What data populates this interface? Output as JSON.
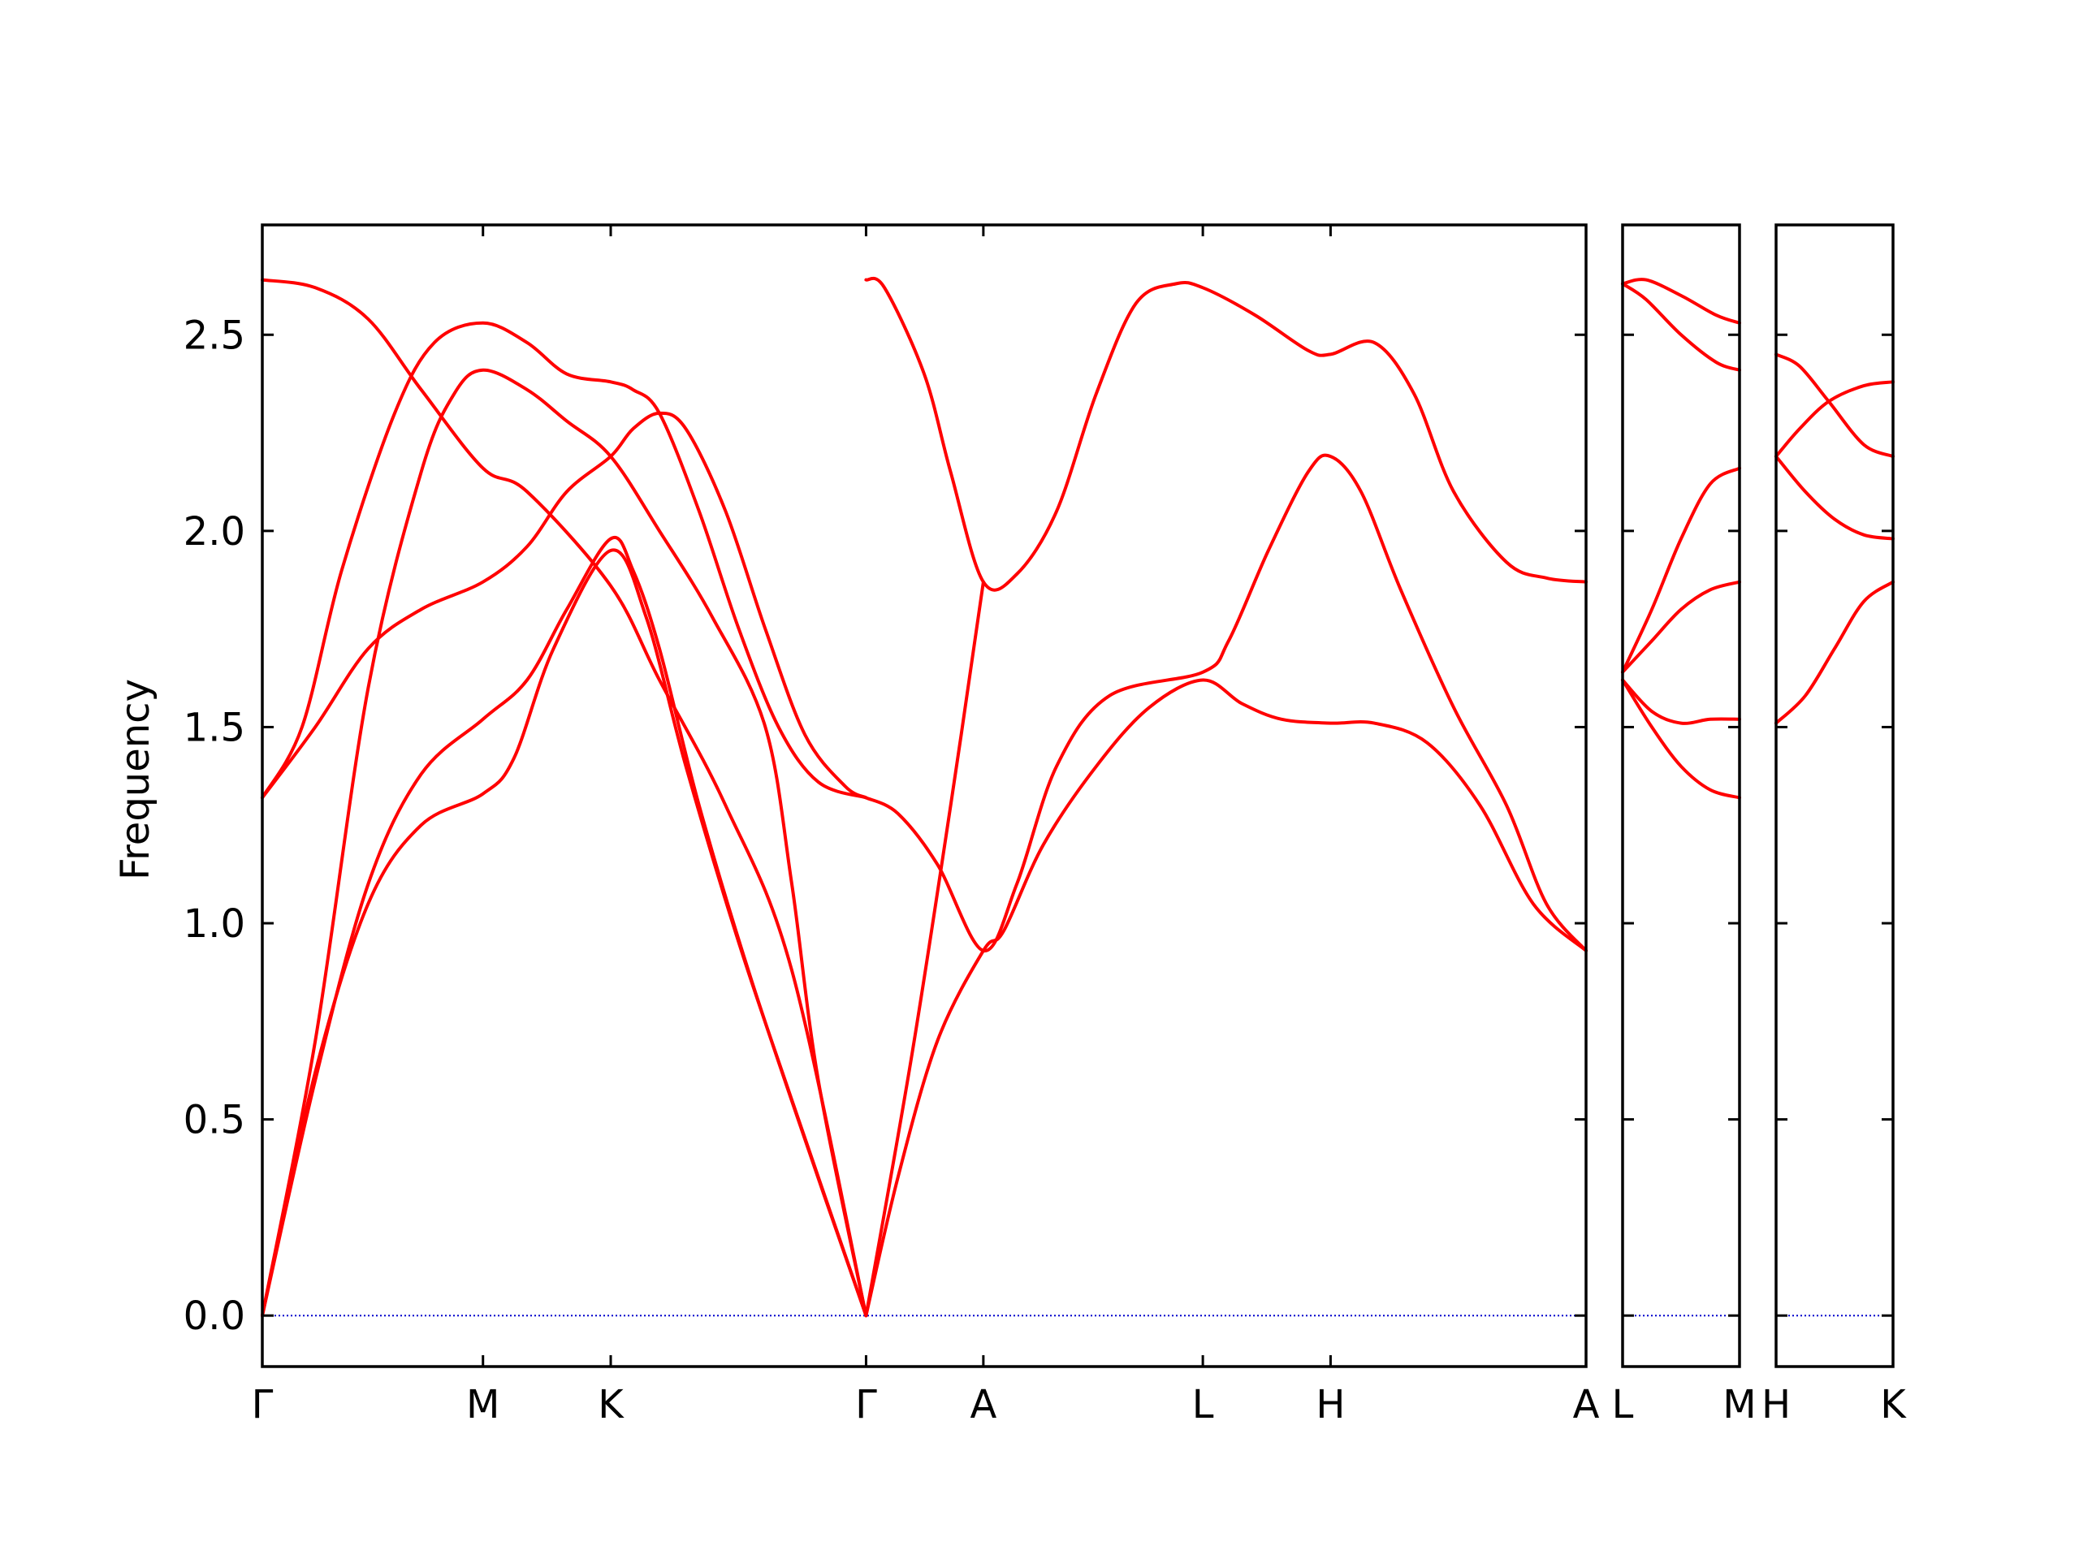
{
  "chart_data": {
    "type": "line",
    "title": "",
    "ylabel": "Frequency",
    "xlabel": "",
    "ylim": [
      -0.13,
      2.78
    ],
    "yticks": [
      "0.0",
      "0.5",
      "1.0",
      "1.5",
      "2.0",
      "2.5"
    ],
    "ytick_values": [
      0.0,
      0.5,
      1.0,
      1.5,
      2.0,
      2.5
    ],
    "band_color": "#ff0000",
    "zero_line_color": "#0000cc",
    "grid": false,
    "panels": [
      {
        "tick_labels": [
          "Γ",
          "M",
          "K",
          "Γ",
          "A",
          "L",
          "H",
          "A"
        ],
        "tick_positions": [
          0,
          0.1667,
          0.2632,
          0.4561,
          0.5447,
          0.7105,
          0.807,
          1.0
        ],
        "series": [
          {
            "points": [
              [
                0,
                2.64
              ],
              [
                0.04,
                2.62
              ],
              [
                0.08,
                2.54
              ],
              [
                0.12,
                2.36
              ],
              [
                0.1667,
                2.16
              ],
              [
                0.2,
                2.1
              ],
              [
                0.2632,
                1.86
              ],
              [
                0.3,
                1.62
              ],
              [
                0.35,
                1.3
              ],
              [
                0.4,
                0.88
              ],
              [
                0.4561,
                0.0
              ]
            ]
          },
          {
            "points": [
              [
                0,
                1.32
              ],
              [
                0.03,
                1.5
              ],
              [
                0.06,
                1.9
              ],
              [
                0.1,
                2.3
              ],
              [
                0.13,
                2.48
              ],
              [
                0.1667,
                2.53
              ],
              [
                0.2,
                2.48
              ],
              [
                0.23,
                2.4
              ],
              [
                0.2632,
                2.38
              ],
              [
                0.28,
                2.36
              ],
              [
                0.3,
                2.3
              ],
              [
                0.33,
                2.05
              ],
              [
                0.36,
                1.75
              ],
              [
                0.39,
                1.5
              ],
              [
                0.42,
                1.36
              ],
              [
                0.4561,
                1.32
              ]
            ]
          },
          {
            "points": [
              [
                0,
                1.32
              ],
              [
                0.04,
                1.5
              ],
              [
                0.08,
                1.7
              ],
              [
                0.12,
                1.8
              ],
              [
                0.1667,
                1.87
              ],
              [
                0.2,
                1.96
              ],
              [
                0.23,
                2.1
              ],
              [
                0.2632,
                2.19
              ],
              [
                0.28,
                2.26
              ],
              [
                0.3,
                2.3
              ],
              [
                0.32,
                2.26
              ],
              [
                0.35,
                2.05
              ],
              [
                0.38,
                1.75
              ],
              [
                0.41,
                1.48
              ],
              [
                0.44,
                1.35
              ],
              [
                0.4561,
                1.32
              ]
            ]
          },
          {
            "points": [
              [
                0,
                0.0
              ],
              [
                0.04,
                0.7
              ],
              [
                0.08,
                1.6
              ],
              [
                0.12,
                2.15
              ],
              [
                0.145,
                2.35
              ],
              [
                0.1667,
                2.41
              ],
              [
                0.2,
                2.36
              ],
              [
                0.23,
                2.28
              ],
              [
                0.2632,
                2.19
              ],
              [
                0.3,
                2.0
              ],
              [
                0.34,
                1.78
              ],
              [
                0.38,
                1.5
              ],
              [
                0.4,
                1.1
              ],
              [
                0.42,
                0.6
              ],
              [
                0.4561,
                0.0
              ]
            ]
          },
          {
            "points": [
              [
                0,
                0.0
              ],
              [
                0.04,
                0.6
              ],
              [
                0.08,
                1.1
              ],
              [
                0.12,
                1.38
              ],
              [
                0.1667,
                1.52
              ],
              [
                0.2,
                1.62
              ],
              [
                0.23,
                1.8
              ],
              [
                0.2632,
                1.98
              ],
              [
                0.28,
                1.9
              ],
              [
                0.3,
                1.7
              ],
              [
                0.33,
                1.3
              ],
              [
                0.37,
                0.85
              ],
              [
                0.42,
                0.35
              ],
              [
                0.4561,
                0.0
              ]
            ]
          },
          {
            "points": [
              [
                0,
                0.0
              ],
              [
                0.04,
                0.62
              ],
              [
                0.08,
                1.05
              ],
              [
                0.12,
                1.25
              ],
              [
                0.1667,
                1.33
              ],
              [
                0.19,
                1.42
              ],
              [
                0.22,
                1.7
              ],
              [
                0.2632,
                1.95
              ],
              [
                0.29,
                1.78
              ],
              [
                0.32,
                1.4
              ],
              [
                0.36,
                0.95
              ],
              [
                0.4,
                0.55
              ],
              [
                0.4561,
                0.0
              ]
            ]
          },
          {
            "points": [
              [
                0.4561,
                2.64
              ],
              [
                0.47,
                2.62
              ],
              [
                0.5,
                2.4
              ],
              [
                0.52,
                2.15
              ],
              [
                0.5447,
                1.87
              ],
              [
                0.57,
                1.89
              ],
              [
                0.6,
                2.05
              ],
              [
                0.63,
                2.35
              ],
              [
                0.66,
                2.58
              ],
              [
                0.69,
                2.63
              ],
              [
                0.7105,
                2.62
              ],
              [
                0.75,
                2.55
              ],
              [
                0.79,
                2.46
              ],
              [
                0.807,
                2.45
              ],
              [
                0.84,
                2.48
              ],
              [
                0.87,
                2.35
              ],
              [
                0.9,
                2.1
              ],
              [
                0.94,
                1.92
              ],
              [
                0.97,
                1.88
              ],
              [
                1.0,
                1.87
              ]
            ]
          },
          {
            "points": [
              [
                0.4561,
                0.0
              ],
              [
                0.48,
                0.35
              ],
              [
                0.51,
                0.7
              ],
              [
                0.5447,
                0.93
              ],
              [
                0.56,
                0.98
              ],
              [
                0.59,
                1.2
              ],
              [
                0.63,
                1.4
              ],
              [
                0.67,
                1.55
              ],
              [
                0.7105,
                1.62
              ],
              [
                0.74,
                1.56
              ],
              [
                0.77,
                1.52
              ],
              [
                0.807,
                1.51
              ],
              [
                0.84,
                1.51
              ],
              [
                0.88,
                1.46
              ],
              [
                0.92,
                1.3
              ],
              [
                0.96,
                1.05
              ],
              [
                1.0,
                0.93
              ]
            ]
          },
          {
            "points": [
              [
                0.4561,
                1.32
              ],
              [
                0.48,
                1.28
              ],
              [
                0.51,
                1.15
              ],
              [
                0.5447,
                0.93
              ],
              [
                0.57,
                1.1
              ],
              [
                0.6,
                1.4
              ],
              [
                0.64,
                1.58
              ],
              [
                0.7105,
                1.64
              ],
              [
                0.73,
                1.72
              ],
              [
                0.76,
                1.95
              ],
              [
                0.79,
                2.15
              ],
              [
                0.807,
                2.19
              ],
              [
                0.83,
                2.1
              ],
              [
                0.86,
                1.85
              ],
              [
                0.9,
                1.55
              ],
              [
                0.94,
                1.3
              ],
              [
                0.97,
                1.05
              ],
              [
                1.0,
                0.93
              ]
            ]
          },
          {
            "points": [
              [
                0.4561,
                0.0
              ],
              [
                0.49,
                0.65
              ],
              [
                0.52,
                1.3
              ],
              [
                0.5447,
                1.87
              ]
            ]
          }
        ]
      },
      {
        "tick_labels": [
          "L",
          "M"
        ],
        "tick_positions": [
          0,
          1.0
        ],
        "series": [
          {
            "points": [
              [
                0,
                2.63
              ],
              [
                0.2,
                2.64
              ],
              [
                0.5,
                2.6
              ],
              [
                0.8,
                2.55
              ],
              [
                1.0,
                2.53
              ]
            ]
          },
          {
            "points": [
              [
                0,
                2.63
              ],
              [
                0.2,
                2.59
              ],
              [
                0.5,
                2.5
              ],
              [
                0.8,
                2.43
              ],
              [
                1.0,
                2.41
              ]
            ]
          },
          {
            "points": [
              [
                0,
                1.64
              ],
              [
                0.25,
                1.8
              ],
              [
                0.5,
                1.98
              ],
              [
                0.75,
                2.12
              ],
              [
                1.0,
                2.16
              ]
            ]
          },
          {
            "points": [
              [
                0,
                1.64
              ],
              [
                0.25,
                1.72
              ],
              [
                0.5,
                1.8
              ],
              [
                0.75,
                1.85
              ],
              [
                1.0,
                1.87
              ]
            ]
          },
          {
            "points": [
              [
                0,
                1.62
              ],
              [
                0.25,
                1.54
              ],
              [
                0.5,
                1.51
              ],
              [
                0.75,
                1.52
              ],
              [
                1.0,
                1.52
              ]
            ]
          },
          {
            "points": [
              [
                0,
                1.62
              ],
              [
                0.25,
                1.5
              ],
              [
                0.5,
                1.4
              ],
              [
                0.75,
                1.34
              ],
              [
                1.0,
                1.32
              ]
            ]
          }
        ]
      },
      {
        "tick_labels": [
          "H",
          "K"
        ],
        "tick_positions": [
          0,
          1.0
        ],
        "series": [
          {
            "points": [
              [
                0,
                2.45
              ],
              [
                0.2,
                2.42
              ],
              [
                0.45,
                2.33
              ],
              [
                0.75,
                2.22
              ],
              [
                1.0,
                2.19
              ]
            ]
          },
          {
            "points": [
              [
                0,
                2.19
              ],
              [
                0.2,
                2.26
              ],
              [
                0.45,
                2.33
              ],
              [
                0.75,
                2.37
              ],
              [
                1.0,
                2.38
              ]
            ]
          },
          {
            "points": [
              [
                0,
                2.19
              ],
              [
                0.25,
                2.1
              ],
              [
                0.5,
                2.03
              ],
              [
                0.75,
                1.99
              ],
              [
                1.0,
                1.98
              ]
            ]
          },
          {
            "points": [
              [
                0,
                1.51
              ],
              [
                0.25,
                1.58
              ],
              [
                0.5,
                1.7
              ],
              [
                0.75,
                1.82
              ],
              [
                1.0,
                1.87
              ]
            ]
          }
        ]
      }
    ]
  }
}
